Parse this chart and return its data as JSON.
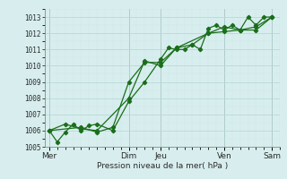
{
  "title": "",
  "xlabel": "Pression niveau de la mer( hPa )",
  "background_color": "#d8eeee",
  "grid_color": "#b8d8d8",
  "minor_grid_color": "#cce6e6",
  "line_color": "#1a6e1a",
  "marker_color": "#1a6e1a",
  "ylim": [
    1005,
    1013.5
  ],
  "yticks": [
    1005,
    1006,
    1007,
    1008,
    1009,
    1010,
    1011,
    1012,
    1013
  ],
  "day_labels": [
    "Mer",
    "Dim",
    "Jeu",
    "Ven",
    "Sam"
  ],
  "day_positions": [
    0,
    5,
    7,
    11,
    14
  ],
  "xlim": [
    -0.3,
    14.5
  ],
  "series1_x": [
    0,
    0.5,
    1,
    1.5,
    2,
    2.5,
    3,
    4,
    5,
    6,
    7,
    7.5,
    8,
    8.5,
    9,
    9.5,
    10,
    10.5,
    11,
    11.5,
    12,
    12.5,
    13,
    13.5,
    14
  ],
  "series1_y": [
    1006.0,
    1005.3,
    1005.9,
    1006.4,
    1006.0,
    1006.3,
    1006.4,
    1006.0,
    1007.8,
    1009.0,
    1010.4,
    1011.1,
    1011.0,
    1011.0,
    1011.3,
    1011.0,
    1012.3,
    1012.5,
    1012.2,
    1012.5,
    1012.2,
    1013.0,
    1012.5,
    1013.0,
    1013.0
  ],
  "series2_x": [
    0,
    1,
    2,
    3,
    5,
    6,
    7,
    8,
    9,
    10,
    11,
    12,
    13,
    14
  ],
  "series2_y": [
    1006.0,
    1006.4,
    1006.1,
    1006.0,
    1008.0,
    1010.3,
    1010.0,
    1011.1,
    1011.3,
    1012.0,
    1012.1,
    1012.2,
    1012.4,
    1013.0
  ],
  "series3_x": [
    0,
    2,
    3,
    4,
    5,
    6,
    7,
    8,
    10,
    11,
    12,
    13,
    14
  ],
  "series3_y": [
    1006.0,
    1006.2,
    1005.9,
    1006.2,
    1009.0,
    1010.2,
    1010.2,
    1011.1,
    1012.0,
    1012.4,
    1012.2,
    1012.2,
    1013.0
  ],
  "vline_positions": [
    0,
    5,
    7,
    11,
    14
  ],
  "vline_color": "#555555"
}
